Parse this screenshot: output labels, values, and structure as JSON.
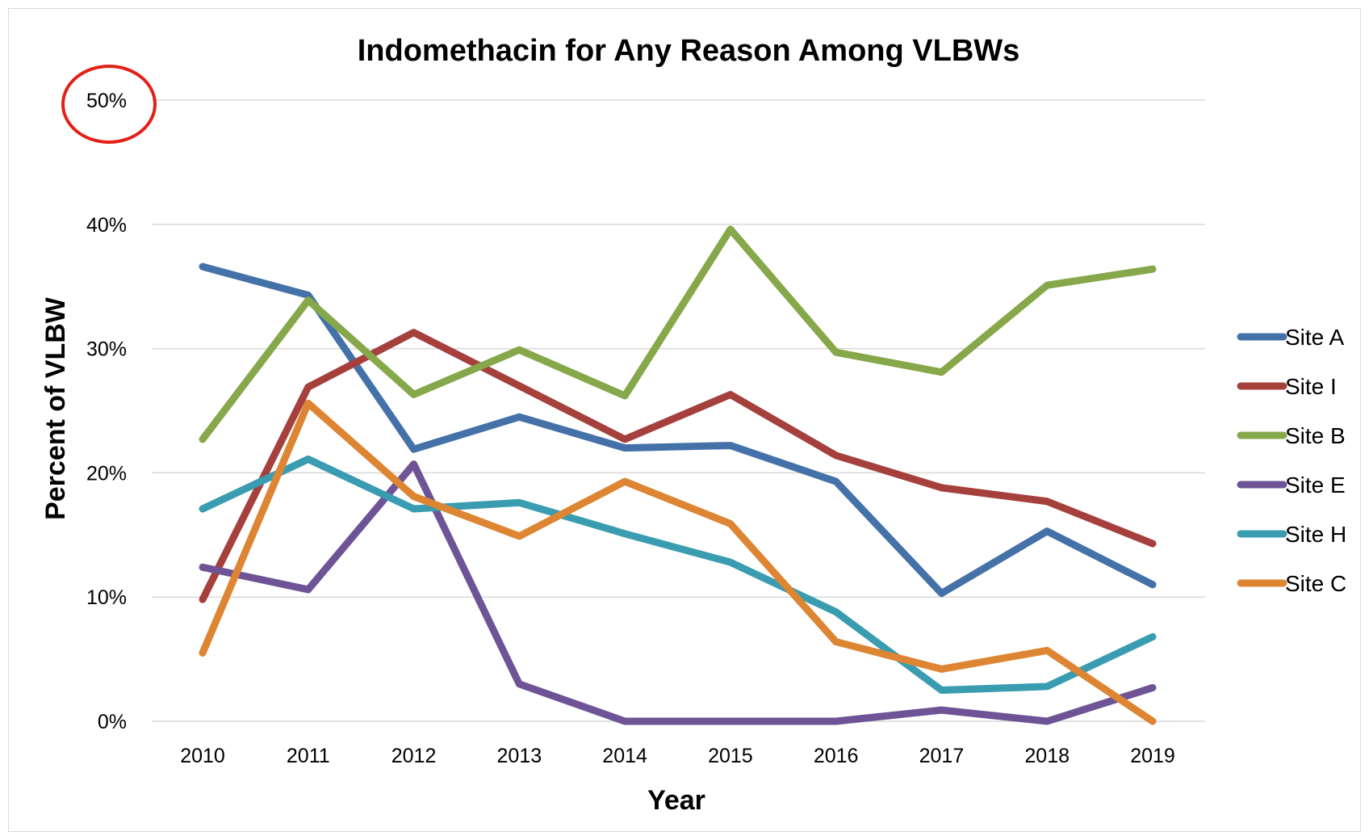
{
  "chart_data": {
    "type": "line",
    "title": "Indomethacin for Any Reason Among VLBWs",
    "xlabel": "Year",
    "ylabel": "Percent of VLBW",
    "categories": [
      "2010",
      "2011",
      "2012",
      "2013",
      "2014",
      "2015",
      "2016",
      "2017",
      "2018",
      "2019"
    ],
    "ylim": [
      0,
      50
    ],
    "yticks": [
      0,
      10,
      20,
      30,
      40,
      50
    ],
    "ytick_labels": [
      "0%",
      "10%",
      "20%",
      "30%",
      "40%",
      "50%"
    ],
    "grid": true,
    "legend_position": "right",
    "highlight": {
      "label": "50%",
      "color": "#e32119",
      "shape": "circle"
    },
    "series": [
      {
        "name": "Site A",
        "color": "#4472a8",
        "values": [
          36.6,
          34.3,
          21.9,
          24.5,
          22.0,
          22.2,
          19.3,
          10.3,
          15.3,
          11.0
        ]
      },
      {
        "name": "Site I",
        "color": "#a5403d",
        "values": [
          9.8,
          26.9,
          31.3,
          27.0,
          22.7,
          26.3,
          21.4,
          18.8,
          17.7,
          14.3
        ]
      },
      {
        "name": "Site B",
        "color": "#86a84a",
        "values": [
          22.7,
          33.9,
          26.3,
          29.9,
          26.2,
          39.6,
          29.7,
          28.1,
          35.1,
          36.4
        ]
      },
      {
        "name": "Site E",
        "color": "#6e5496",
        "values": [
          12.4,
          10.6,
          20.7,
          3.0,
          0.0,
          0.0,
          0.0,
          0.9,
          0.0,
          2.7
        ]
      },
      {
        "name": "Site H",
        "color": "#3a9cb0",
        "values": [
          17.1,
          21.1,
          17.1,
          17.6,
          15.1,
          12.8,
          8.8,
          2.5,
          2.8,
          6.8
        ]
      },
      {
        "name": "Site C",
        "color": "#dd8533",
        "values": [
          5.5,
          25.6,
          18.1,
          14.9,
          19.3,
          15.9,
          6.4,
          4.2,
          5.7,
          0.0
        ]
      }
    ]
  }
}
